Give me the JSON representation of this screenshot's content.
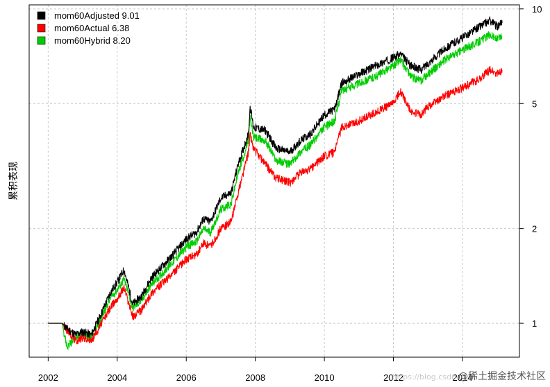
{
  "chart_data": {
    "type": "line",
    "ylabel": "累积表现",
    "y_scale": "log",
    "ylim": [
      0.78,
      10.3
    ],
    "xlim": [
      2001.45,
      2015.65
    ],
    "x_ticks": [
      "2002",
      "2004",
      "2006",
      "2008",
      "2010",
      "2012",
      "2014"
    ],
    "y_ticks": [
      "1",
      "2",
      "5",
      "10"
    ],
    "grid": true,
    "legend_position": "top-left",
    "series": [
      {
        "name": "mom60Adjusted 9.01",
        "color": "#000000",
        "points": [
          [
            2002.0,
            1.0
          ],
          [
            2002.4,
            1.0
          ],
          [
            2002.55,
            0.96
          ],
          [
            2002.8,
            0.92
          ],
          [
            2003.0,
            0.94
          ],
          [
            2003.25,
            0.92
          ],
          [
            2003.5,
            1.05
          ],
          [
            2003.8,
            1.25
          ],
          [
            2004.0,
            1.35
          ],
          [
            2004.2,
            1.48
          ],
          [
            2004.45,
            1.15
          ],
          [
            2004.7,
            1.22
          ],
          [
            2005.0,
            1.4
          ],
          [
            2005.5,
            1.6
          ],
          [
            2006.0,
            1.85
          ],
          [
            2006.3,
            1.95
          ],
          [
            2006.5,
            2.15
          ],
          [
            2006.7,
            2.1
          ],
          [
            2007.0,
            2.5
          ],
          [
            2007.3,
            2.6
          ],
          [
            2007.5,
            3.2
          ],
          [
            2007.8,
            4.0
          ],
          [
            2007.85,
            4.9
          ],
          [
            2007.95,
            4.2
          ],
          [
            2008.3,
            4.1
          ],
          [
            2008.6,
            3.6
          ],
          [
            2009.0,
            3.5
          ],
          [
            2009.3,
            3.8
          ],
          [
            2009.6,
            4.0
          ],
          [
            2010.0,
            4.6
          ],
          [
            2010.3,
            4.8
          ],
          [
            2010.5,
            5.8
          ],
          [
            2011.0,
            6.2
          ],
          [
            2011.5,
            6.6
          ],
          [
            2012.0,
            7.0
          ],
          [
            2012.2,
            7.2
          ],
          [
            2012.5,
            6.6
          ],
          [
            2012.8,
            6.4
          ],
          [
            2013.0,
            6.7
          ],
          [
            2013.5,
            7.5
          ],
          [
            2014.0,
            8.1
          ],
          [
            2014.5,
            8.8
          ],
          [
            2014.8,
            9.2
          ],
          [
            2015.0,
            8.8
          ],
          [
            2015.15,
            9.01
          ]
        ]
      },
      {
        "name": "mom60Actual 6.38",
        "color": "#ff0000",
        "points": [
          [
            2002.0,
            1.0
          ],
          [
            2002.4,
            1.0
          ],
          [
            2002.55,
            0.95
          ],
          [
            2002.8,
            0.88
          ],
          [
            2003.0,
            0.9
          ],
          [
            2003.25,
            0.88
          ],
          [
            2003.5,
            0.98
          ],
          [
            2003.8,
            1.12
          ],
          [
            2004.0,
            1.2
          ],
          [
            2004.2,
            1.3
          ],
          [
            2004.45,
            1.05
          ],
          [
            2004.7,
            1.1
          ],
          [
            2005.0,
            1.25
          ],
          [
            2005.5,
            1.4
          ],
          [
            2006.0,
            1.6
          ],
          [
            2006.3,
            1.65
          ],
          [
            2006.5,
            1.8
          ],
          [
            2006.7,
            1.75
          ],
          [
            2007.0,
            2.0
          ],
          [
            2007.3,
            2.1
          ],
          [
            2007.5,
            2.6
          ],
          [
            2007.8,
            3.5
          ],
          [
            2007.85,
            4.0
          ],
          [
            2007.95,
            3.6
          ],
          [
            2008.3,
            3.2
          ],
          [
            2008.6,
            2.9
          ],
          [
            2009.0,
            2.8
          ],
          [
            2009.3,
            3.0
          ],
          [
            2009.6,
            3.1
          ],
          [
            2010.0,
            3.4
          ],
          [
            2010.3,
            3.5
          ],
          [
            2010.5,
            4.2
          ],
          [
            2011.0,
            4.4
          ],
          [
            2011.5,
            4.7
          ],
          [
            2012.0,
            5.0
          ],
          [
            2012.2,
            5.5
          ],
          [
            2012.5,
            4.7
          ],
          [
            2012.8,
            4.6
          ],
          [
            2013.0,
            4.9
          ],
          [
            2013.5,
            5.3
          ],
          [
            2014.0,
            5.6
          ],
          [
            2014.5,
            6.0
          ],
          [
            2014.8,
            6.4
          ],
          [
            2015.0,
            6.2
          ],
          [
            2015.15,
            6.38
          ]
        ]
      },
      {
        "name": "mom60Hybrid 8.20",
        "color": "#00cc00",
        "points": [
          [
            2002.0,
            1.0
          ],
          [
            2002.4,
            1.0
          ],
          [
            2002.55,
            0.84
          ],
          [
            2002.8,
            0.9
          ],
          [
            2003.0,
            0.93
          ],
          [
            2003.25,
            0.9
          ],
          [
            2003.5,
            1.02
          ],
          [
            2003.8,
            1.2
          ],
          [
            2004.0,
            1.28
          ],
          [
            2004.2,
            1.38
          ],
          [
            2004.45,
            1.12
          ],
          [
            2004.7,
            1.18
          ],
          [
            2005.0,
            1.33
          ],
          [
            2005.5,
            1.52
          ],
          [
            2006.0,
            1.75
          ],
          [
            2006.3,
            1.82
          ],
          [
            2006.5,
            2.0
          ],
          [
            2006.7,
            1.95
          ],
          [
            2007.0,
            2.3
          ],
          [
            2007.3,
            2.4
          ],
          [
            2007.5,
            3.0
          ],
          [
            2007.8,
            3.8
          ],
          [
            2007.85,
            4.5
          ],
          [
            2007.95,
            3.9
          ],
          [
            2008.3,
            3.8
          ],
          [
            2008.6,
            3.3
          ],
          [
            2009.0,
            3.2
          ],
          [
            2009.3,
            3.5
          ],
          [
            2009.6,
            3.7
          ],
          [
            2010.0,
            4.2
          ],
          [
            2010.3,
            4.4
          ],
          [
            2010.5,
            5.5
          ],
          [
            2011.0,
            5.8
          ],
          [
            2011.5,
            6.1
          ],
          [
            2012.0,
            6.6
          ],
          [
            2012.2,
            6.9
          ],
          [
            2012.5,
            6.1
          ],
          [
            2012.8,
            5.9
          ],
          [
            2013.0,
            6.2
          ],
          [
            2013.5,
            6.9
          ],
          [
            2014.0,
            7.4
          ],
          [
            2014.5,
            7.9
          ],
          [
            2014.8,
            8.3
          ],
          [
            2015.0,
            8.0
          ],
          [
            2015.15,
            8.2
          ]
        ]
      }
    ]
  },
  "watermark": {
    "prefix": "https://blog.csdn",
    "text": "@稀土掘金技术社区"
  }
}
